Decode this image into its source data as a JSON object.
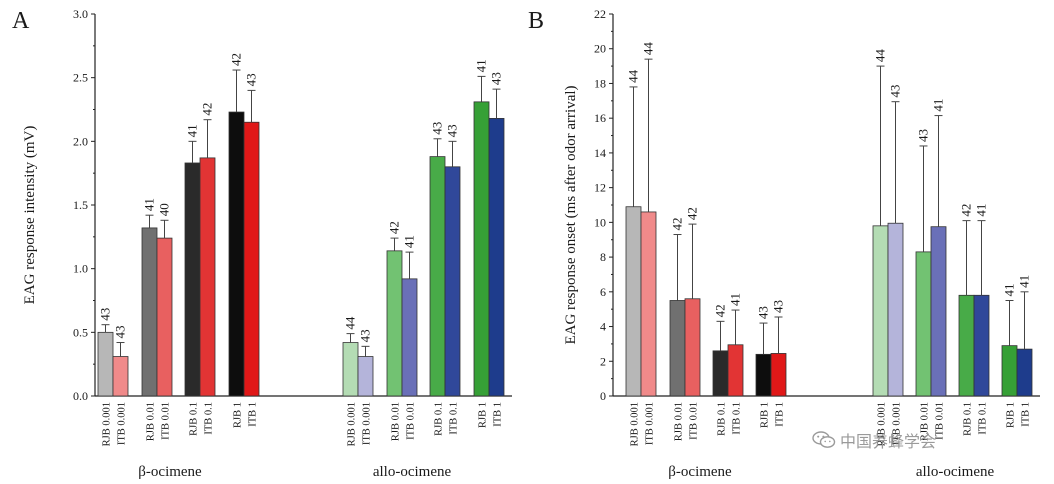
{
  "chart_data": [
    {
      "panel_label": "A",
      "type": "bar",
      "ylabel": "EAG response intensity (mV)",
      "ylim": [
        0,
        3.0
      ],
      "yticks": [
        0.0,
        0.5,
        1.0,
        1.5,
        2.0,
        2.5,
        3.0
      ],
      "ytick_labels": [
        "0.0",
        "0.5",
        "1.0",
        "1.5",
        "2.0",
        "2.5",
        "3.0"
      ],
      "groups": [
        {
          "name": "β-ocimene",
          "pairs": [
            {
              "bars": [
                {
                  "label": "RJB 0.001",
                  "value": 0.5,
                  "error": 0.06,
                  "n": "43",
                  "color": "#b7b7b7"
                },
                {
                  "label": "ITB  0.001",
                  "value": 0.31,
                  "error": 0.11,
                  "n": "43",
                  "color": "#f08a8a"
                }
              ]
            },
            {
              "bars": [
                {
                  "label": "RJB 0.01",
                  "value": 1.32,
                  "error": 0.1,
                  "n": "41",
                  "color": "#707070"
                },
                {
                  "label": "ITB  0.01",
                  "value": 1.24,
                  "error": 0.14,
                  "n": "40",
                  "color": "#e86060"
                }
              ]
            },
            {
              "bars": [
                {
                  "label": "RJB 0.1",
                  "value": 1.83,
                  "error": 0.17,
                  "n": "41",
                  "color": "#2a2a2a"
                },
                {
                  "label": "ITB  0.1",
                  "value": 1.87,
                  "error": 0.3,
                  "n": "42",
                  "color": "#e23434"
                }
              ]
            },
            {
              "bars": [
                {
                  "label": "RJB 1",
                  "value": 2.23,
                  "error": 0.33,
                  "n": "42",
                  "color": "#0d0d0d"
                },
                {
                  "label": "ITB  1",
                  "value": 2.15,
                  "error": 0.25,
                  "n": "43",
                  "color": "#e01818"
                }
              ]
            }
          ]
        },
        {
          "name": "allo-ocimene",
          "pairs": [
            {
              "bars": [
                {
                  "label": "RJB 0.001",
                  "value": 0.42,
                  "error": 0.07,
                  "n": "44",
                  "color": "#b4dcb4"
                },
                {
                  "label": "ITB  0.001",
                  "value": 0.31,
                  "error": 0.08,
                  "n": "43",
                  "color": "#b4b4da"
                }
              ]
            },
            {
              "bars": [
                {
                  "label": "RJB  0.01",
                  "value": 1.14,
                  "error": 0.1,
                  "n": "42",
                  "color": "#72c272"
                },
                {
                  "label": "ITB  0.01",
                  "value": 0.92,
                  "error": 0.21,
                  "n": "41",
                  "color": "#6a70b8"
                }
              ]
            },
            {
              "bars": [
                {
                  "label": "RJB 0.1",
                  "value": 1.88,
                  "error": 0.14,
                  "n": "43",
                  "color": "#48ab48"
                },
                {
                  "label": "ITB  0.1",
                  "value": 1.8,
                  "error": 0.2,
                  "n": "43",
                  "color": "#30489a"
                }
              ]
            },
            {
              "bars": [
                {
                  "label": "RJB 1",
                  "value": 2.31,
                  "error": 0.2,
                  "n": "41",
                  "color": "#36a036"
                },
                {
                  "label": "ITB 1",
                  "value": 2.18,
                  "error": 0.23,
                  "n": "43",
                  "color": "#1e3c8c"
                }
              ]
            }
          ]
        }
      ]
    },
    {
      "panel_label": "B",
      "type": "bar",
      "ylabel": "EAG response onset (ms after odor arrival)",
      "ylim": [
        0,
        22
      ],
      "yticks": [
        0,
        2,
        4,
        6,
        8,
        10,
        12,
        14,
        16,
        18,
        20,
        22
      ],
      "ytick_labels": [
        "0",
        "2",
        "4",
        "6",
        "8",
        "10",
        "12",
        "14",
        "16",
        "18",
        "20",
        "22"
      ],
      "groups": [
        {
          "name": "β-ocimene",
          "pairs": [
            {
              "bars": [
                {
                  "label": "RJB 0.001",
                  "value": 10.9,
                  "error": 6.9,
                  "n": "44",
                  "color": "#b7b7b7"
                },
                {
                  "label": "ITB  0.001",
                  "value": 10.6,
                  "error": 8.8,
                  "n": "44",
                  "color": "#f08a8a"
                }
              ]
            },
            {
              "bars": [
                {
                  "label": "RJB  0.01",
                  "value": 5.5,
                  "error": 3.8,
                  "n": "42",
                  "color": "#707070"
                },
                {
                  "label": "ITB  0.01",
                  "value": 5.6,
                  "error": 4.3,
                  "n": "42",
                  "color": "#e86060"
                }
              ]
            },
            {
              "bars": [
                {
                  "label": "RJB 0.1",
                  "value": 2.6,
                  "error": 1.7,
                  "n": "42",
                  "color": "#2a2a2a"
                },
                {
                  "label": "ITB  0.1",
                  "value": 2.95,
                  "error": 2.0,
                  "n": "41",
                  "color": "#e23434"
                }
              ]
            },
            {
              "bars": [
                {
                  "label": "RJB 1",
                  "value": 2.4,
                  "error": 1.8,
                  "n": "43",
                  "color": "#0d0d0d"
                },
                {
                  "label": "ITB  1",
                  "value": 2.45,
                  "error": 2.1,
                  "n": "43",
                  "color": "#e01818"
                }
              ]
            }
          ]
        },
        {
          "name": "allo-ocimene",
          "pairs": [
            {
              "bars": [
                {
                  "label": "RJB 0.001",
                  "value": 9.8,
                  "error": 9.2,
                  "n": "44",
                  "color": "#b4dcb4"
                },
                {
                  "label": "ITB 0.001",
                  "value": 9.95,
                  "error": 7.0,
                  "n": "43",
                  "color": "#b4b4da"
                }
              ]
            },
            {
              "bars": [
                {
                  "label": "RJB 0.01",
                  "value": 8.3,
                  "error": 6.1,
                  "n": "43",
                  "color": "#72c272"
                },
                {
                  "label": "ITB  0.01",
                  "value": 9.75,
                  "error": 6.4,
                  "n": "41",
                  "color": "#6a70b8"
                }
              ]
            },
            {
              "bars": [
                {
                  "label": "RJB 0.1",
                  "value": 5.8,
                  "error": 4.3,
                  "n": "42",
                  "color": "#48ab48"
                },
                {
                  "label": "ITB  0.1",
                  "value": 5.8,
                  "error": 4.3,
                  "n": "41",
                  "color": "#30489a"
                }
              ]
            },
            {
              "bars": [
                {
                  "label": "RJB 1",
                  "value": 2.9,
                  "error": 2.6,
                  "n": "41",
                  "color": "#36a036"
                },
                {
                  "label": "ITB 1",
                  "value": 2.7,
                  "error": 3.3,
                  "n": "41",
                  "color": "#1e3c8c"
                }
              ]
            }
          ]
        }
      ]
    }
  ],
  "watermark": {
    "text": "中国养蜂学会",
    "icon": "wechat-icon"
  }
}
